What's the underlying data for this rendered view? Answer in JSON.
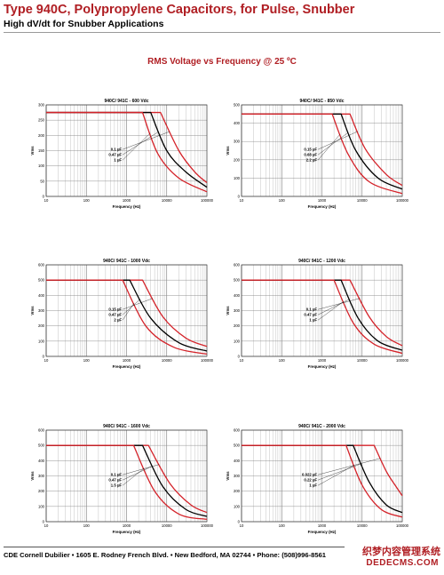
{
  "header": {
    "title": "Type 940C, Polypropylene Capacitors, for Pulse, Snubber",
    "subtitle": "High dV/dt for Snubber Applications",
    "section_title": "RMS Voltage vs Frequency @ 25 ºC"
  },
  "footer": {
    "text": "CDE Cornell Dubilier • 1605 E. Rodney French Blvd. • New Bedford, MA 02744 • Phone: (508)996-8561",
    "watermark_line1": "织梦内容管理系统",
    "watermark_line2": "DEDECMS.COM"
  },
  "colors": {
    "red": "#d4232a",
    "black": "#000000",
    "title_red": "#b01e23"
  },
  "chart_data": [
    {
      "type": "line",
      "title": "940C/ 941C - 600 Vdc",
      "xlabel": "Frequency (Hz)",
      "ylabel": "Vrms",
      "x_scale": "log",
      "xlim": [
        10,
        100000
      ],
      "ylim": [
        0,
        300
      ],
      "x_ticks": [
        "10",
        "100",
        "1000",
        "10000",
        "100000"
      ],
      "y_ticks": [
        "0",
        "50",
        "100",
        "150",
        "200",
        "250",
        "300"
      ],
      "grid": true,
      "series": [
        {
          "name": "0.1 µF",
          "color": "#d4232a",
          "x": [
            10,
            7000,
            20000,
            50000,
            100000
          ],
          "y": [
            275,
            275,
            150,
            80,
            45
          ]
        },
        {
          "name": "0.47 µF",
          "color": "#000000",
          "x": [
            10,
            4000,
            10000,
            30000,
            100000
          ],
          "y": [
            275,
            275,
            150,
            80,
            30
          ]
        },
        {
          "name": "1 µF",
          "color": "#d4232a",
          "x": [
            10,
            2500,
            6000,
            20000,
            100000
          ],
          "y": [
            275,
            275,
            140,
            60,
            15
          ]
        }
      ]
    },
    {
      "type": "line",
      "title": "940C/ 941C - 850 Vdc",
      "xlabel": "Frequency (Hz)",
      "ylabel": "Vrms",
      "x_scale": "log",
      "xlim": [
        10,
        100000
      ],
      "ylim": [
        0,
        500
      ],
      "x_ticks": [
        "10",
        "100",
        "1000",
        "10000",
        "100000"
      ],
      "y_ticks": [
        "0",
        "100",
        "200",
        "300",
        "400",
        "500"
      ],
      "grid": true,
      "series": [
        {
          "name": "0.15 µF",
          "color": "#d4232a",
          "x": [
            10,
            5000,
            12000,
            40000,
            100000
          ],
          "y": [
            450,
            450,
            260,
            120,
            60
          ]
        },
        {
          "name": "0.68 µF",
          "color": "#000000",
          "x": [
            10,
            3000,
            7000,
            25000,
            100000
          ],
          "y": [
            450,
            450,
            250,
            100,
            40
          ]
        },
        {
          "name": "2.2 µF",
          "color": "#d4232a",
          "x": [
            10,
            1800,
            4500,
            15000,
            100000
          ],
          "y": [
            450,
            450,
            230,
            80,
            15
          ]
        }
      ]
    },
    {
      "type": "line",
      "title": "940C/ 941C - 1000 Vdc",
      "xlabel": "Frequency (Hz)",
      "ylabel": "Vrms",
      "x_scale": "log",
      "xlim": [
        10,
        100000
      ],
      "ylim": [
        0,
        600
      ],
      "x_ticks": [
        "10",
        "100",
        "1000",
        "10000",
        "100000"
      ],
      "y_ticks": [
        "0",
        "100",
        "200",
        "300",
        "400",
        "500",
        "600"
      ],
      "grid": true,
      "series": [
        {
          "name": "0.15 µF",
          "color": "#d4232a",
          "x": [
            10,
            2500,
            8000,
            30000,
            100000
          ],
          "y": [
            500,
            500,
            260,
            120,
            65
          ]
        },
        {
          "name": "0.47 µF",
          "color": "#000000",
          "x": [
            10,
            1200,
            4000,
            20000,
            100000
          ],
          "y": [
            500,
            500,
            250,
            90,
            35
          ]
        },
        {
          "name": "2 µF",
          "color": "#d4232a",
          "x": [
            10,
            800,
            3000,
            15000,
            100000
          ],
          "y": [
            500,
            500,
            200,
            60,
            15
          ]
        }
      ]
    },
    {
      "type": "line",
      "title": "940C/ 941C - 1200 Vdc",
      "xlabel": "Frequency (Hz)",
      "ylabel": "Vrms",
      "x_scale": "log",
      "xlim": [
        10,
        100000
      ],
      "ylim": [
        0,
        600
      ],
      "x_ticks": [
        "10",
        "100",
        "1000",
        "10000",
        "100000"
      ],
      "y_ticks": [
        "0",
        "100",
        "200",
        "300",
        "400",
        "500",
        "600"
      ],
      "grid": true,
      "series": [
        {
          "name": "0.1 µF",
          "color": "#d4232a",
          "x": [
            10,
            5000,
            15000,
            40000,
            100000
          ],
          "y": [
            500,
            500,
            260,
            130,
            70
          ]
        },
        {
          "name": "0.47 µF",
          "color": "#000000",
          "x": [
            10,
            3000,
            8000,
            25000,
            100000
          ],
          "y": [
            500,
            500,
            250,
            100,
            40
          ]
        },
        {
          "name": "1 µF",
          "color": "#d4232a",
          "x": [
            10,
            2000,
            6000,
            20000,
            100000
          ],
          "y": [
            500,
            500,
            220,
            80,
            20
          ]
        }
      ]
    },
    {
      "type": "line",
      "title": "940C/ 941C - 1600 Vdc",
      "xlabel": "Frequency (Hz)",
      "ylabel": "Vrms",
      "x_scale": "log",
      "xlim": [
        10,
        100000
      ],
      "ylim": [
        0,
        600
      ],
      "x_ticks": [
        "10",
        "100",
        "1000",
        "10000",
        "100000"
      ],
      "y_ticks": [
        "0",
        "100",
        "200",
        "300",
        "400",
        "500",
        "600"
      ],
      "grid": true,
      "series": [
        {
          "name": "0.1 µF",
          "color": "#d4232a",
          "x": [
            10,
            3500,
            12000,
            40000,
            100000
          ],
          "y": [
            500,
            500,
            250,
            110,
            60
          ]
        },
        {
          "name": "0.47 µF",
          "color": "#000000",
          "x": [
            10,
            2500,
            8000,
            30000,
            100000
          ],
          "y": [
            500,
            500,
            230,
            80,
            35
          ]
        },
        {
          "name": "1.5 µF",
          "color": "#d4232a",
          "x": [
            10,
            1500,
            5000,
            20000,
            100000
          ],
          "y": [
            500,
            500,
            200,
            50,
            15
          ]
        }
      ]
    },
    {
      "type": "line",
      "title": "940C/ 941C - 2000 Vdc",
      "xlabel": "Frequency (Hz)",
      "ylabel": "Vrms",
      "x_scale": "log",
      "xlim": [
        10,
        100000
      ],
      "ylim": [
        0,
        600
      ],
      "x_ticks": [
        "10",
        "100",
        "1000",
        "10000",
        "100000"
      ],
      "y_ticks": [
        "0",
        "100",
        "200",
        "300",
        "400",
        "500",
        "600"
      ],
      "grid": true,
      "series": [
        {
          "name": "0.022 µF",
          "color": "#d4232a",
          "x": [
            10,
            20000,
            40000,
            70000,
            100000
          ],
          "y": [
            500,
            500,
            330,
            230,
            170
          ]
        },
        {
          "name": "0.22 µF",
          "color": "#000000",
          "x": [
            10,
            6000,
            15000,
            40000,
            100000
          ],
          "y": [
            500,
            500,
            260,
            110,
            60
          ]
        },
        {
          "name": "1 µF",
          "color": "#d4232a",
          "x": [
            10,
            4000,
            10000,
            30000,
            100000
          ],
          "y": [
            500,
            500,
            240,
            80,
            30
          ]
        }
      ]
    }
  ]
}
